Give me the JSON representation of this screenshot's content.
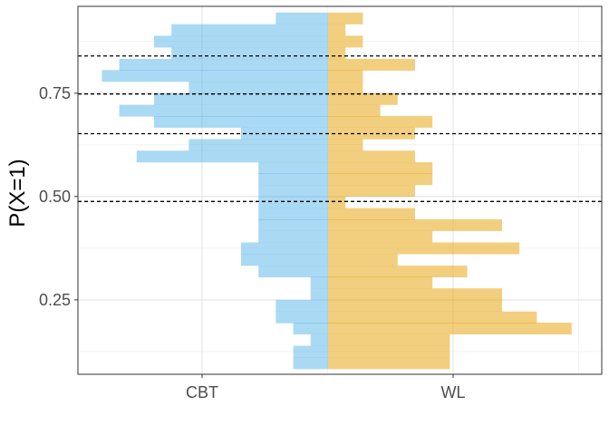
{
  "chart_data": {
    "type": "bar",
    "orientation": "horizontal-mirrored-histogram",
    "title": "",
    "xlabel": "",
    "ylabel": "P(X=1)",
    "ylim": [
      0.07,
      0.96
    ],
    "yticks": [
      0.25,
      0.5,
      0.75
    ],
    "ytick_labels": [
      "0.25",
      "0.50",
      "0.75"
    ],
    "xticks": [
      "CBT",
      "WL"
    ],
    "grid": true,
    "bin_width": 0.0278,
    "hlines": [
      0.488,
      0.652,
      0.748,
      0.84
    ],
    "groups": [
      {
        "name": "CBT",
        "color": "#56B4E9",
        "bins": [
          {
            "y": 0.097,
            "count": 2
          },
          {
            "y": 0.125,
            "count": 2
          },
          {
            "y": 0.153,
            "count": 1
          },
          {
            "y": 0.181,
            "count": 2
          },
          {
            "y": 0.208,
            "count": 3
          },
          {
            "y": 0.236,
            "count": 3
          },
          {
            "y": 0.264,
            "count": 1
          },
          {
            "y": 0.292,
            "count": 1
          },
          {
            "y": 0.319,
            "count": 4
          },
          {
            "y": 0.347,
            "count": 5
          },
          {
            "y": 0.375,
            "count": 5
          },
          {
            "y": 0.403,
            "count": 4
          },
          {
            "y": 0.431,
            "count": 4
          },
          {
            "y": 0.458,
            "count": 4
          },
          {
            "y": 0.486,
            "count": 4
          },
          {
            "y": 0.514,
            "count": 4
          },
          {
            "y": 0.542,
            "count": 4
          },
          {
            "y": 0.569,
            "count": 4
          },
          {
            "y": 0.597,
            "count": 11
          },
          {
            "y": 0.625,
            "count": 8
          },
          {
            "y": 0.653,
            "count": 5
          },
          {
            "y": 0.681,
            "count": 10
          },
          {
            "y": 0.708,
            "count": 12
          },
          {
            "y": 0.736,
            "count": 10
          },
          {
            "y": 0.764,
            "count": 8
          },
          {
            "y": 0.792,
            "count": 13
          },
          {
            "y": 0.819,
            "count": 12
          },
          {
            "y": 0.847,
            "count": 9
          },
          {
            "y": 0.875,
            "count": 10
          },
          {
            "y": 0.903,
            "count": 9
          },
          {
            "y": 0.931,
            "count": 3
          }
        ]
      },
      {
        "name": "WL",
        "color": "#E69F00",
        "bins": [
          {
            "y": 0.097,
            "count": 7
          },
          {
            "y": 0.125,
            "count": 7
          },
          {
            "y": 0.153,
            "count": 7
          },
          {
            "y": 0.181,
            "count": 14
          },
          {
            "y": 0.208,
            "count": 12
          },
          {
            "y": 0.236,
            "count": 10
          },
          {
            "y": 0.264,
            "count": 10
          },
          {
            "y": 0.292,
            "count": 6
          },
          {
            "y": 0.319,
            "count": 8
          },
          {
            "y": 0.347,
            "count": 4
          },
          {
            "y": 0.375,
            "count": 11
          },
          {
            "y": 0.403,
            "count": 6
          },
          {
            "y": 0.431,
            "count": 10
          },
          {
            "y": 0.458,
            "count": 5
          },
          {
            "y": 0.486,
            "count": 1
          },
          {
            "y": 0.514,
            "count": 5
          },
          {
            "y": 0.542,
            "count": 6
          },
          {
            "y": 0.569,
            "count": 6
          },
          {
            "y": 0.597,
            "count": 5
          },
          {
            "y": 0.625,
            "count": 2
          },
          {
            "y": 0.653,
            "count": 5
          },
          {
            "y": 0.681,
            "count": 6
          },
          {
            "y": 0.708,
            "count": 3
          },
          {
            "y": 0.736,
            "count": 4
          },
          {
            "y": 0.764,
            "count": 2
          },
          {
            "y": 0.792,
            "count": 2
          },
          {
            "y": 0.819,
            "count": 5
          },
          {
            "y": 0.847,
            "count": 1
          },
          {
            "y": 0.875,
            "count": 2
          },
          {
            "y": 0.903,
            "count": 1
          },
          {
            "y": 0.931,
            "count": 2
          }
        ]
      }
    ]
  }
}
